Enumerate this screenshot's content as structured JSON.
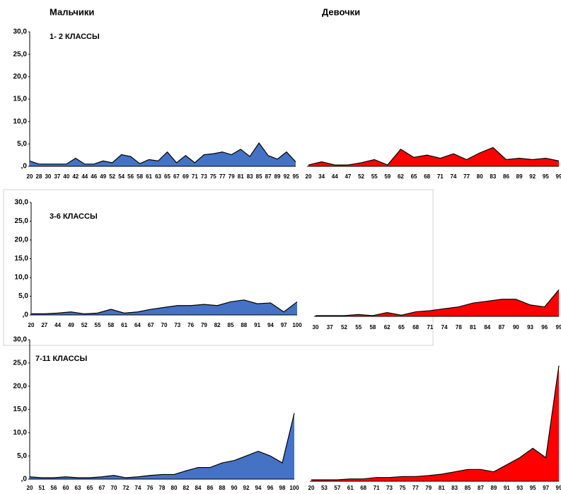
{
  "headers": {
    "boys": "Мальчики",
    "girls": "Девочки"
  },
  "chart_data": [
    {
      "type": "area",
      "title": "1- 2 КЛАССЫ",
      "color": "#4472c4",
      "categories": [
        "20",
        "28",
        "30",
        "37",
        "40",
        "42",
        "44",
        "46",
        "49",
        "52",
        "54",
        "56",
        "58",
        "61",
        "63",
        "65",
        "67",
        "69",
        "71",
        "73",
        "75",
        "77",
        "79",
        "81",
        "83",
        "85",
        "87",
        "89",
        "92",
        "95"
      ],
      "values": [
        1.2,
        0.5,
        0.5,
        0.5,
        0.5,
        1.8,
        0.5,
        0.5,
        1.2,
        0.8,
        2.6,
        2.2,
        0.6,
        1.5,
        1.2,
        3.2,
        0.8,
        2.4,
        0.8,
        2.6,
        2.8,
        3.2,
        2.6,
        3.8,
        2.2,
        5.2,
        2.4,
        1.6,
        3.2,
        1.0
      ],
      "ylim": [
        0,
        30
      ],
      "yticks": [
        {
          "value": 0,
          "label": ",0"
        },
        {
          "value": 5,
          "label": "5,0"
        },
        {
          "value": 10,
          "label": "10,0"
        },
        {
          "value": 15,
          "label": "15,0"
        },
        {
          "value": 20,
          "label": "20,0"
        },
        {
          "value": 25,
          "label": "25,0"
        },
        {
          "value": 30,
          "label": "30,0"
        }
      ]
    },
    {
      "type": "area",
      "color": "#ff0000",
      "categories": [
        "20",
        "34",
        "44",
        "47",
        "52",
        "55",
        "59",
        "62",
        "65",
        "68",
        "71",
        "74",
        "77",
        "80",
        "83",
        "86",
        "89",
        "92",
        "95",
        "99"
      ],
      "values": [
        0.3,
        1.0,
        0.3,
        0.3,
        0.8,
        1.5,
        0.3,
        3.8,
        2.0,
        2.5,
        1.8,
        2.8,
        1.5,
        3.0,
        4.2,
        1.5,
        1.8,
        1.5,
        1.8,
        1.2
      ],
      "ylim": [
        0,
        30
      ]
    },
    {
      "type": "area",
      "title": "3-6 КЛАССЫ",
      "color": "#4472c4",
      "categories": [
        "20",
        "27",
        "44",
        "49",
        "52",
        "55",
        "58",
        "61",
        "64",
        "67",
        "70",
        "73",
        "76",
        "79",
        "82",
        "85",
        "88",
        "91",
        "94",
        "97",
        "100"
      ],
      "values": [
        0.3,
        0.3,
        0.5,
        0.8,
        0.3,
        0.5,
        1.5,
        0.5,
        0.8,
        1.5,
        2.0,
        2.5,
        2.5,
        2.8,
        2.5,
        3.5,
        4.0,
        3.0,
        3.2,
        0.8,
        3.5
      ],
      "ylim": [
        0,
        30
      ],
      "yticks": [
        {
          "value": 0,
          "label": ",0"
        },
        {
          "value": 5,
          "label": "5,0"
        },
        {
          "value": 10,
          "label": "10,0"
        },
        {
          "value": 15,
          "label": "15,0"
        },
        {
          "value": 20,
          "label": "20,0"
        },
        {
          "value": 25,
          "label": "25,0"
        },
        {
          "value": 30,
          "label": "30,0"
        }
      ]
    },
    {
      "type": "area",
      "color": "#ff0000",
      "categories": [
        "30",
        "37",
        "52",
        "55",
        "58",
        "62",
        "65",
        "68",
        "71",
        "74",
        "78",
        "81",
        "84",
        "87",
        "90",
        "93",
        "96",
        "99"
      ],
      "values": [
        0.2,
        0.2,
        0.2,
        0.5,
        0.2,
        1.0,
        0.3,
        1.2,
        1.5,
        2.0,
        2.5,
        3.5,
        4.0,
        4.5,
        4.5,
        3.0,
        2.5,
        7.0
      ],
      "ylim": [
        0,
        30
      ]
    },
    {
      "type": "area",
      "title": "7-11 КЛАССЫ",
      "color": "#4472c4",
      "categories": [
        "20",
        "51",
        "56",
        "60",
        "63",
        "65",
        "67",
        "70",
        "72",
        "74",
        "76",
        "78",
        "80",
        "82",
        "84",
        "86",
        "88",
        "90",
        "92",
        "94",
        "96",
        "98",
        "100"
      ],
      "values": [
        0.5,
        0.3,
        0.3,
        0.5,
        0.3,
        0.3,
        0.5,
        0.8,
        0.3,
        0.5,
        0.8,
        1.0,
        1.0,
        1.8,
        2.5,
        2.5,
        3.5,
        4.0,
        5.0,
        6.0,
        5.0,
        3.5,
        14.2
      ],
      "ylim": [
        0,
        30
      ],
      "yticks": [
        {
          "value": 0,
          "label": ",0"
        },
        {
          "value": 5,
          "label": "5,0"
        },
        {
          "value": 10,
          "label": "10,0"
        },
        {
          "value": 15,
          "label": "15,0"
        },
        {
          "value": 20,
          "label": "20,0"
        },
        {
          "value": 25,
          "label": "25,0"
        },
        {
          "value": 30,
          "label": "30,0"
        }
      ]
    },
    {
      "type": "area",
      "color": "#ff0000",
      "categories": [
        "20",
        "53",
        "57",
        "61",
        "68",
        "71",
        "73",
        "75",
        "77",
        "79",
        "81",
        "83",
        "85",
        "87",
        "89",
        "91",
        "93",
        "95",
        "97",
        "99"
      ],
      "values": [
        0.3,
        0.3,
        0.3,
        0.5,
        0.5,
        0.8,
        0.8,
        1.0,
        1.0,
        1.2,
        1.5,
        2.0,
        2.5,
        2.5,
        2.0,
        3.5,
        5.0,
        7.0,
        5.0,
        24.5
      ],
      "ylim": [
        0,
        30
      ]
    }
  ]
}
